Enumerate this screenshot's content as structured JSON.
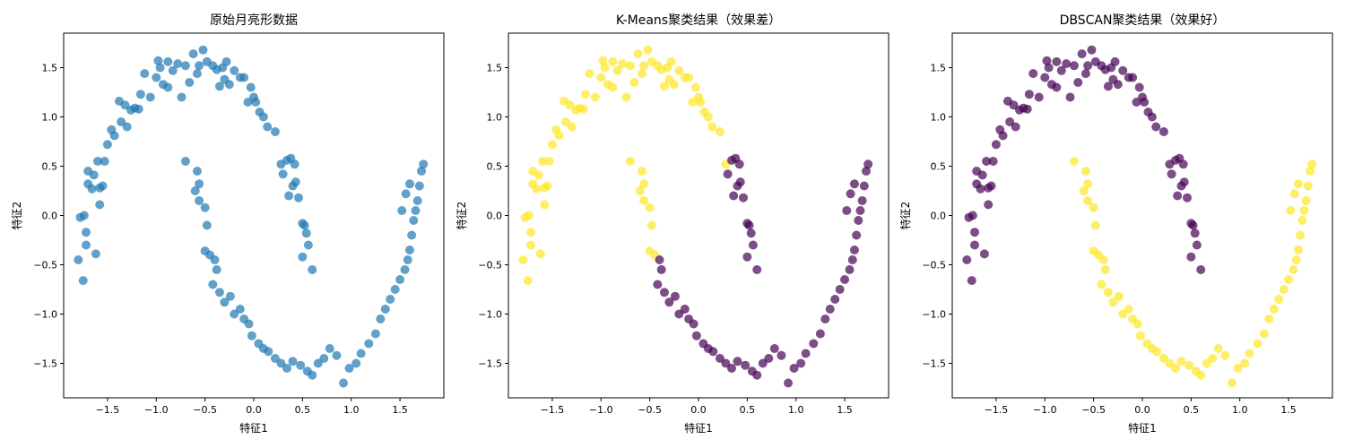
{
  "chart_data": [
    {
      "type": "scatter",
      "title": "原始月亮形数据",
      "xlabel": "特征1",
      "ylabel": "特征2",
      "xlim": [
        -1.95,
        1.95
      ],
      "ylim": [
        -1.85,
        1.85
      ],
      "xticks": [
        -1.5,
        -1.0,
        -0.5,
        0.0,
        0.5,
        1.0,
        1.5
      ],
      "xtick_labels": [
        "−1.5",
        "−1.0",
        "−0.5",
        "0.0",
        "0.5",
        "1.0",
        "1.5"
      ],
      "yticks": [
        -1.5,
        -1.0,
        -0.5,
        0.0,
        0.5,
        1.0,
        1.5
      ],
      "ytick_labels": [
        "−1.5",
        "−1.0",
        "−0.5",
        "0.0",
        "0.5",
        "1.0",
        "1.5"
      ],
      "colors": [
        "#1f77b4"
      ],
      "grid": false,
      "point_alpha": 0.7,
      "points": [
        [
          -1.8,
          -0.45
        ],
        [
          -1.78,
          -0.02
        ],
        [
          -1.74,
          0.0
        ],
        [
          -1.72,
          -0.3
        ],
        [
          -1.75,
          -0.66
        ],
        [
          -1.72,
          -0.17
        ],
        [
          -1.7,
          0.32
        ],
        [
          -1.7,
          0.45
        ],
        [
          -1.66,
          0.27
        ],
        [
          -1.64,
          0.41
        ],
        [
          -1.6,
          0.55
        ],
        [
          -1.58,
          0.28
        ],
        [
          -1.55,
          0.3
        ],
        [
          -1.53,
          0.55
        ],
        [
          -1.62,
          -0.39
        ],
        [
          -1.58,
          0.11
        ],
        [
          -1.5,
          0.72
        ],
        [
          -1.46,
          0.87
        ],
        [
          -1.43,
          0.81
        ],
        [
          -1.38,
          1.16
        ],
        [
          -1.36,
          0.95
        ],
        [
          -1.32,
          1.12
        ],
        [
          -1.3,
          0.9
        ],
        [
          -1.26,
          1.07
        ],
        [
          -1.22,
          1.09
        ],
        [
          -1.18,
          1.08
        ],
        [
          -1.16,
          1.23
        ],
        [
          -1.12,
          1.44
        ],
        [
          -1.06,
          1.2
        ],
        [
          -1.0,
          1.4
        ],
        [
          -0.98,
          1.57
        ],
        [
          -0.96,
          1.5
        ],
        [
          -0.93,
          1.33
        ],
        [
          -0.88,
          1.56
        ],
        [
          -0.83,
          1.47
        ],
        [
          -0.78,
          1.54
        ],
        [
          -0.74,
          1.2
        ],
        [
          -0.7,
          1.52
        ],
        [
          -0.66,
          1.35
        ],
        [
          -0.62,
          1.64
        ],
        [
          -0.58,
          1.44
        ],
        [
          -0.56,
          1.52
        ],
        [
          -0.52,
          1.68
        ],
        [
          -0.48,
          1.56
        ],
        [
          -0.42,
          1.52
        ],
        [
          -0.38,
          1.48
        ],
        [
          -0.35,
          1.31
        ],
        [
          -0.3,
          1.38
        ],
        [
          -0.28,
          1.56
        ],
        [
          -0.25,
          1.33
        ],
        [
          -0.2,
          1.47
        ],
        [
          -0.14,
          1.4
        ],
        [
          -0.1,
          1.4
        ],
        [
          -0.06,
          1.15
        ],
        [
          -0.03,
          1.3
        ],
        [
          0.0,
          1.2
        ],
        [
          0.02,
          1.15
        ],
        [
          0.06,
          1.05
        ],
        [
          0.1,
          1.0
        ],
        [
          0.14,
          0.9
        ],
        [
          0.22,
          0.85
        ],
        [
          0.28,
          0.52
        ],
        [
          0.34,
          0.56
        ],
        [
          0.38,
          0.58
        ],
        [
          0.42,
          0.52
        ],
        [
          0.4,
          0.3
        ],
        [
          0.43,
          0.34
        ],
        [
          0.46,
          0.18
        ],
        [
          0.5,
          -0.08
        ],
        [
          0.52,
          -0.1
        ],
        [
          0.54,
          -0.18
        ],
        [
          0.5,
          -0.42
        ],
        [
          0.56,
          -0.3
        ],
        [
          0.6,
          -0.55
        ],
        [
          -0.7,
          0.55
        ],
        [
          -0.58,
          0.45
        ],
        [
          -0.6,
          0.25
        ],
        [
          -0.56,
          0.32
        ],
        [
          -0.56,
          0.15
        ],
        [
          -0.5,
          0.08
        ],
        [
          -0.48,
          -0.1
        ],
        [
          -0.5,
          -0.36
        ],
        [
          -0.45,
          -0.4
        ],
        [
          -0.4,
          -0.45
        ],
        [
          -0.38,
          -0.55
        ],
        [
          -0.42,
          -0.7
        ],
        [
          -0.35,
          -0.78
        ],
        [
          -0.3,
          -0.88
        ],
        [
          -0.24,
          -0.82
        ],
        [
          -0.2,
          -1.0
        ],
        [
          -0.14,
          -0.95
        ],
        [
          -0.1,
          -1.05
        ],
        [
          -0.05,
          -1.1
        ],
        [
          -0.02,
          -1.22
        ],
        [
          0.05,
          -1.3
        ],
        [
          0.1,
          -1.35
        ],
        [
          0.15,
          -1.38
        ],
        [
          0.22,
          -1.45
        ],
        [
          0.28,
          -1.5
        ],
        [
          0.34,
          -1.55
        ],
        [
          0.4,
          -1.48
        ],
        [
          0.48,
          -1.52
        ],
        [
          0.55,
          -1.58
        ],
        [
          0.6,
          -1.62
        ],
        [
          0.66,
          -1.5
        ],
        [
          0.72,
          -1.45
        ],
        [
          0.78,
          -1.35
        ],
        [
          0.85,
          -1.42
        ],
        [
          0.92,
          -1.7
        ],
        [
          0.98,
          -1.55
        ],
        [
          1.05,
          -1.5
        ],
        [
          1.1,
          -1.4
        ],
        [
          1.18,
          -1.3
        ],
        [
          1.25,
          -1.2
        ],
        [
          1.3,
          -1.05
        ],
        [
          1.35,
          -0.95
        ],
        [
          1.4,
          -0.85
        ],
        [
          1.45,
          -0.75
        ],
        [
          1.5,
          -0.65
        ],
        [
          1.55,
          -0.55
        ],
        [
          1.58,
          -0.45
        ],
        [
          1.6,
          -0.35
        ],
        [
          1.62,
          -0.2
        ],
        [
          1.64,
          -0.05
        ],
        [
          1.66,
          0.05
        ],
        [
          1.68,
          0.15
        ],
        [
          1.7,
          0.3
        ],
        [
          1.72,
          0.45
        ],
        [
          1.74,
          0.52
        ],
        [
          1.6,
          0.32
        ],
        [
          1.56,
          0.22
        ],
        [
          1.52,
          0.05
        ],
        [
          0.3,
          0.42
        ],
        [
          0.36,
          0.2
        ],
        [
          -0.32,
          1.5
        ],
        [
          -0.88,
          1.3
        ]
      ]
    },
    {
      "type": "scatter",
      "title": "K-Means聚类结果（效果差）",
      "xlabel": "特征1",
      "ylabel": "特征2",
      "xlim": [
        -1.95,
        1.95
      ],
      "ylim": [
        -1.85,
        1.85
      ],
      "xticks": [
        -1.5,
        -1.0,
        -0.5,
        0.0,
        0.5,
        1.0,
        1.5
      ],
      "xtick_labels": [
        "−1.5",
        "−1.0",
        "−0.5",
        "0.0",
        "0.5",
        "1.0",
        "1.5"
      ],
      "yticks": [
        -1.5,
        -1.0,
        -0.5,
        0.0,
        0.5,
        1.0,
        1.5
      ],
      "ytick_labels": [
        "−1.5",
        "−1.0",
        "−0.5",
        "0.0",
        "0.5",
        "1.0",
        "1.5"
      ],
      "colors": [
        "#440154",
        "#fde725"
      ],
      "grid": false,
      "point_alpha": 0.7,
      "assignment_rule": "x < 0.30 and not (x > -0.45 and y < -0.3) -> cluster 1 (yellow); else cluster 0 (purple)"
    },
    {
      "type": "scatter",
      "title": "DBSCAN聚类结果（效果好）",
      "xlabel": "特征1",
      "ylabel": "特征2",
      "xlim": [
        -1.95,
        1.95
      ],
      "ylim": [
        -1.85,
        1.85
      ],
      "xticks": [
        -1.5,
        -1.0,
        -0.5,
        0.0,
        0.5,
        1.0,
        1.5
      ],
      "xtick_labels": [
        "−1.5",
        "−1.0",
        "−0.5",
        "0.0",
        "0.5",
        "1.0",
        "1.5"
      ],
      "yticks": [
        -1.5,
        -1.0,
        -0.5,
        0.0,
        0.5,
        1.0,
        1.5
      ],
      "ytick_labels": [
        "−1.5",
        "−1.0",
        "−0.5",
        "0.0",
        "0.5",
        "1.0",
        "1.5"
      ],
      "colors": [
        "#440154",
        "#fde725"
      ],
      "grid": false,
      "point_alpha": 0.7,
      "assignment_rule": "upper moon -> cluster 0 (purple); lower moon -> cluster 1 (yellow)"
    }
  ]
}
